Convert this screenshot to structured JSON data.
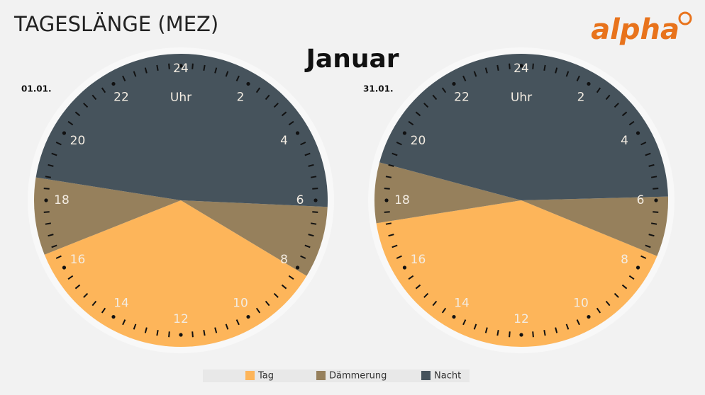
{
  "chart_data": {
    "type": "clock-pie",
    "title": "TAGESLÄNGE (MEZ)",
    "subtitle": "Januar",
    "logo": "alpha",
    "hour_labels": [
      24,
      2,
      4,
      6,
      8,
      10,
      12,
      14,
      16,
      18,
      20,
      22
    ],
    "hour_unit": "Uhr",
    "series": [
      {
        "name": "Tag",
        "color": "#fdb55a"
      },
      {
        "name": "Dämmerung",
        "color": "#96805c"
      },
      {
        "name": "Nacht",
        "color": "#46535c"
      }
    ],
    "clocks": [
      {
        "label": "01.01.",
        "intervals": [
          [
            [
              8.07,
              16.55
            ]
          ],
          [
            [
              6.17,
              8.07
            ],
            [
              16.55,
              18.6
            ]
          ],
          [
            [
              18.6,
              6.17
            ]
          ]
        ]
      },
      {
        "label": "31.01.",
        "intervals": [
          [
            [
              7.49,
              17.4
            ]
          ],
          [
            [
              5.9,
              7.49
            ],
            [
              17.4,
              19.0
            ]
          ],
          [
            [
              19.0,
              5.9
            ]
          ]
        ]
      }
    ]
  }
}
